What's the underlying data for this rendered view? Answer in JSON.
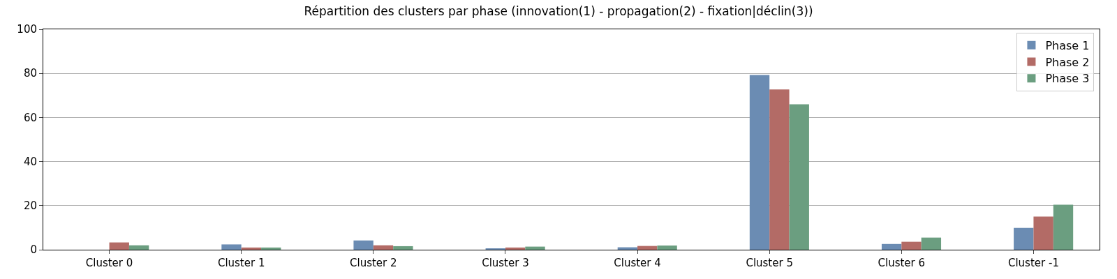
{
  "chart_data": {
    "type": "bar",
    "title": "Répartition des clusters par phase (innovation(1) - propagation(2) - fixation|déclin(3))",
    "categories": [
      "Cluster 0",
      "Cluster 1",
      "Cluster 2",
      "Cluster 3",
      "Cluster 4",
      "Cluster 5",
      "Cluster 6",
      "Cluster -1"
    ],
    "series": [
      {
        "name": "Phase 1",
        "color": "#6b8cb3",
        "values": [
          0,
          2.4,
          4.2,
          0.6,
          1.1,
          79.3,
          2.6,
          9.9
        ]
      },
      {
        "name": "Phase 2",
        "color": "#b36b66",
        "values": [
          3.3,
          1.0,
          2.0,
          1.0,
          1.7,
          72.7,
          3.6,
          15.0
        ]
      },
      {
        "name": "Phase 3",
        "color": "#6b9e80",
        "values": [
          2.0,
          1.0,
          1.6,
          1.4,
          1.9,
          66.0,
          5.5,
          20.4
        ]
      }
    ],
    "ylim": [
      0,
      100
    ],
    "yticks": [
      0,
      20,
      40,
      60,
      80,
      100
    ],
    "grid": "y",
    "legend": "top right"
  }
}
